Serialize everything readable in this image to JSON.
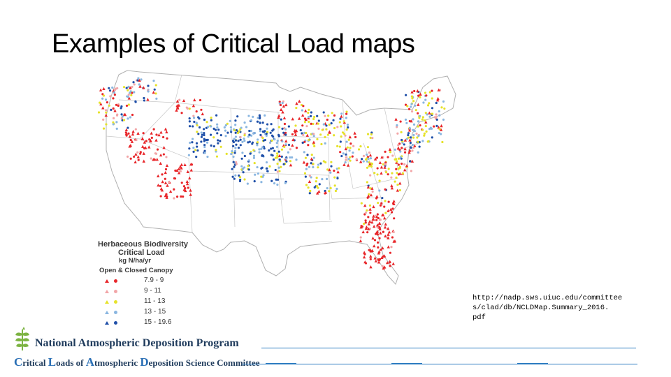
{
  "slide": {
    "title": "Examples of Critical Load maps"
  },
  "map": {
    "region": "Contiguous United States",
    "legend": {
      "title_line1": "Herbaceous Biodiversity",
      "title_line2": "Critical Load",
      "unit": "kg N/ha/yr",
      "canopy_label": "Open &  Closed Canopy",
      "items": [
        {
          "label": "7.9 - 9",
          "color": "#e8262a"
        },
        {
          "label": "9 - 11",
          "color": "#f2a6a8"
        },
        {
          "label": "11 - 13",
          "color": "#e6e22a"
        },
        {
          "label": "13 - 15",
          "color": "#8ab6e0"
        },
        {
          "label": "15 - 19.6",
          "color": "#1f4fa8"
        }
      ]
    }
  },
  "source_url": {
    "line1": "http://nadp.sws.uiuc.edu/committee",
    "line2": "s/clad/db/NCLDMap.Summary_2016.",
    "line3": "pdf"
  },
  "footer": {
    "program": "National Atmospheric Deposition Program",
    "committee_parts": [
      "C",
      "ritical ",
      "L",
      "oads of ",
      "A",
      "tmospheric ",
      "D",
      "eposition Science Committee"
    ],
    "logo_color": "#7cb342",
    "text_color": "#1f3b5c",
    "rule_color": "#2b7bc0"
  }
}
